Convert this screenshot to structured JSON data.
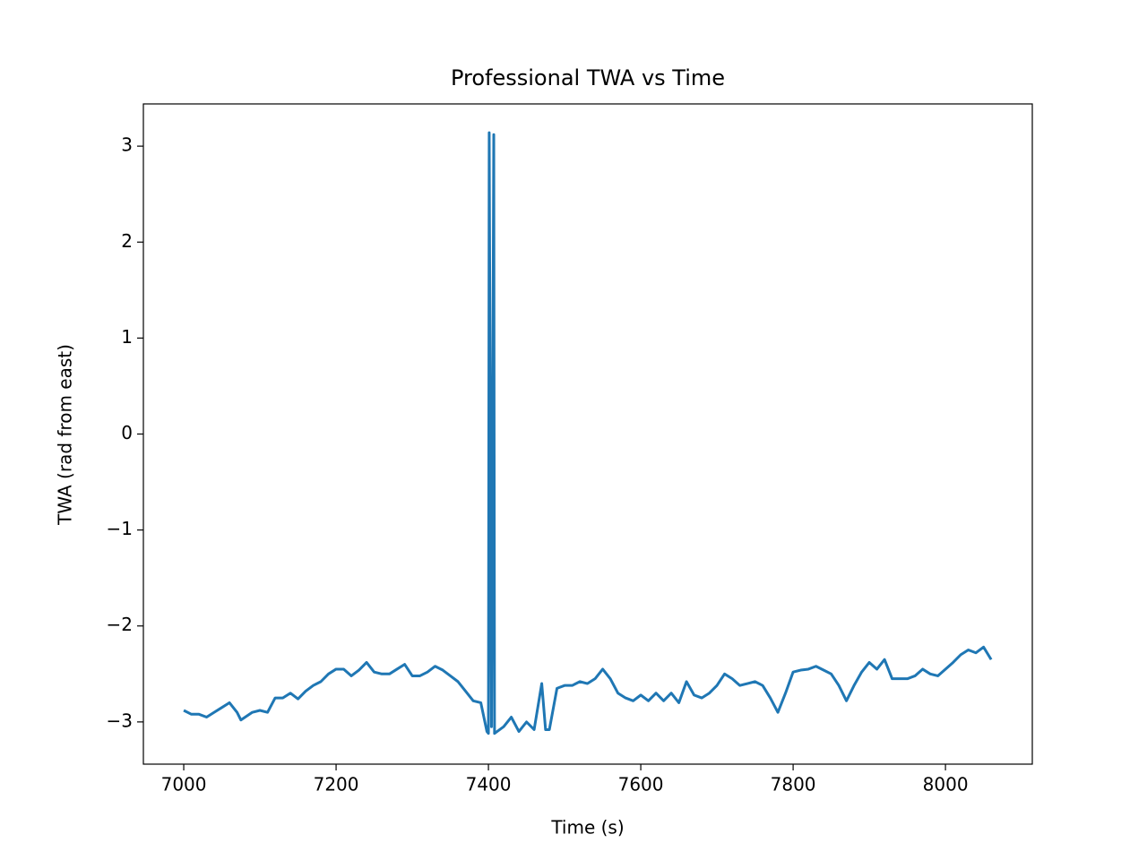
{
  "chart_data": {
    "type": "line",
    "title": "Professional TWA vs Time",
    "x_label": "Time (s)",
    "y_label": "TWA (rad from east)",
    "x": [
      7000,
      7010,
      7020,
      7030,
      7040,
      7050,
      7060,
      7070,
      7075,
      7090,
      7100,
      7110,
      7120,
      7130,
      7140,
      7150,
      7160,
      7170,
      7180,
      7190,
      7200,
      7210,
      7220,
      7230,
      7240,
      7250,
      7260,
      7270,
      7280,
      7290,
      7300,
      7310,
      7320,
      7330,
      7340,
      7350,
      7360,
      7370,
      7380,
      7390,
      7398,
      7400,
      7401,
      7404,
      7407,
      7408,
      7420,
      7430,
      7440,
      7450,
      7460,
      7470,
      7475,
      7480,
      7490,
      7500,
      7510,
      7520,
      7530,
      7540,
      7550,
      7560,
      7570,
      7580,
      7590,
      7600,
      7610,
      7620,
      7630,
      7640,
      7650,
      7660,
      7670,
      7680,
      7690,
      7700,
      7710,
      7720,
      7730,
      7740,
      7750,
      7760,
      7770,
      7780,
      7790,
      7800,
      7810,
      7820,
      7830,
      7840,
      7850,
      7860,
      7870,
      7880,
      7890,
      7900,
      7910,
      7920,
      7930,
      7940,
      7950,
      7960,
      7970,
      7980,
      7990,
      8000,
      8010,
      8020,
      8030,
      8040,
      8050,
      8060
    ],
    "series": [
      {
        "name": "TWA",
        "color": "#1f77b4",
        "values": [
          -2.88,
          -2.92,
          -2.92,
          -2.95,
          -2.9,
          -2.85,
          -2.8,
          -2.9,
          -2.98,
          -2.9,
          -2.88,
          -2.9,
          -2.75,
          -2.75,
          -2.7,
          -2.76,
          -2.68,
          -2.62,
          -2.58,
          -2.5,
          -2.45,
          -2.45,
          -2.52,
          -2.46,
          -2.38,
          -2.48,
          -2.5,
          -2.5,
          -2.45,
          -2.4,
          -2.52,
          -2.52,
          -2.48,
          -2.42,
          -2.46,
          -2.52,
          -2.58,
          -2.68,
          -2.78,
          -2.8,
          -3.1,
          -3.12,
          3.14,
          -3.05,
          3.12,
          -3.12,
          -3.05,
          -2.95,
          -3.1,
          -3.0,
          -3.08,
          -2.6,
          -3.08,
          -3.08,
          -2.65,
          -2.62,
          -2.62,
          -2.58,
          -2.6,
          -2.55,
          -2.45,
          -2.55,
          -2.7,
          -2.75,
          -2.78,
          -2.72,
          -2.78,
          -2.7,
          -2.78,
          -2.7,
          -2.8,
          -2.58,
          -2.72,
          -2.75,
          -2.7,
          -2.62,
          -2.5,
          -2.55,
          -2.62,
          -2.6,
          -2.58,
          -2.62,
          -2.75,
          -2.9,
          -2.7,
          -2.48,
          -2.46,
          -2.45,
          -2.42,
          -2.46,
          -2.5,
          -2.62,
          -2.78,
          -2.62,
          -2.48,
          -2.38,
          -2.45,
          -2.35,
          -2.55,
          -2.55,
          -2.55,
          -2.52,
          -2.45,
          -2.5,
          -2.52,
          -2.45,
          -2.38,
          -2.3,
          -2.25,
          -2.28,
          -2.22,
          -2.35
        ]
      }
    ],
    "xlim": [
      6947,
      8114
    ],
    "ylim": [
      -3.44,
      3.44
    ],
    "xticks": [
      7000,
      7200,
      7400,
      7600,
      7800,
      8000
    ],
    "yticks": [
      {
        "value": -3,
        "label": "−3"
      },
      {
        "value": -2,
        "label": "−2"
      },
      {
        "value": -1,
        "label": "−1"
      },
      0,
      1,
      2,
      3
    ]
  }
}
